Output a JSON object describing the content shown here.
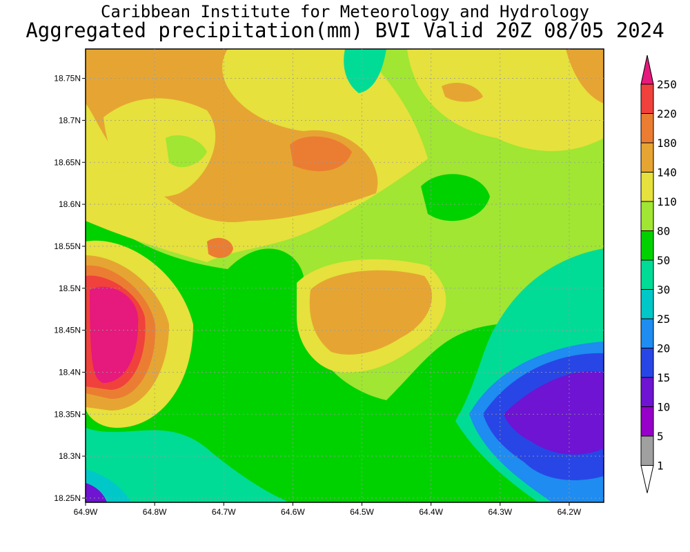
{
  "title": {
    "line1": "Caribbean Institute for Meteorology and Hydrology",
    "line2": "Aggregated precipitation(mm) BVI Valid 20Z 08/05 2024"
  },
  "map": {
    "lon_ticks": [
      "64.9W",
      "64.8W",
      "64.7W",
      "64.6W",
      "64.5W",
      "64.4W",
      "64.3W",
      "64.2W"
    ],
    "lat_ticks": [
      "18.75N",
      "18.7N",
      "18.65N",
      "18.6N",
      "18.55N",
      "18.5N",
      "18.45N",
      "18.4N",
      "18.35N",
      "18.3N",
      "18.25N"
    ],
    "lon_range": [
      -64.9,
      -64.15
    ],
    "lat_range": [
      18.245,
      18.785
    ]
  },
  "colorbar": {
    "labels": [
      "250",
      "220",
      "180",
      "140",
      "110",
      "80",
      "50",
      "30",
      "25",
      "20",
      "15",
      "10",
      "5",
      "1"
    ],
    "colors": [
      "#e6197d",
      "#f0413c",
      "#eb7d32",
      "#e6a532",
      "#e6e13c",
      "#a0e632",
      "#00d200",
      "#00dc96",
      "#00c8c8",
      "#1e8cf0",
      "#2846e6",
      "#6e14d2",
      "#9600c8",
      "#a0a0a0",
      "#ffffff"
    ]
  }
}
